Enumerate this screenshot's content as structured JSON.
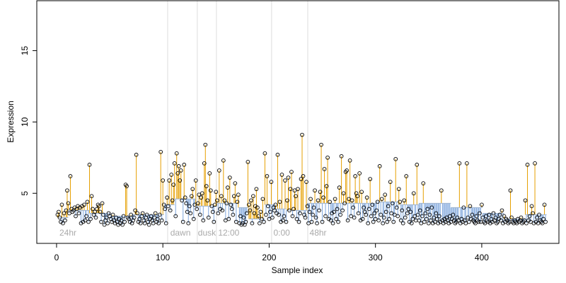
{
  "chart_data": {
    "type": "scatter",
    "xlabel": "Sample index",
    "ylabel": "Expression",
    "xlim": [
      -18.6,
      472.6
    ],
    "ylim": [
      1.49,
      18.5
    ],
    "xticks": [
      0,
      100,
      200,
      300,
      400
    ],
    "yticks": [
      5,
      10,
      15
    ],
    "above_color": "#e69f00",
    "below_color": "#7ea6dc",
    "step_color": "#9fb4d0",
    "vline_color": "#dddddd",
    "vlines": [
      104.5,
      132.4,
      150.4,
      202.3,
      236.3
    ],
    "annotations": [
      {
        "text": "24hr",
        "x": 2.7,
        "y": 2.2
      },
      {
        "text": "dawn",
        "x": 107,
        "y": 2.2
      },
      {
        "text": "dusk",
        "x": 133,
        "y": 2.2
      },
      {
        "text": "12:00",
        "x": 152,
        "y": 2.2
      },
      {
        "text": "0:00",
        "x": 204,
        "y": 2.2
      },
      {
        "text": "48hr",
        "x": 238,
        "y": 2.2
      }
    ],
    "steps": {
      "edges": [
        1,
        11,
        31,
        51,
        71,
        101,
        111,
        131,
        151,
        171,
        181,
        196,
        206,
        216,
        236,
        261,
        301,
        321,
        341,
        371,
        401,
        421,
        441,
        461
      ],
      "values": [
        3.3,
        3.8,
        3.6,
        3.4,
        3.5,
        4.2,
        4.6,
        4.1,
        4.3,
        4.0,
        3.2,
        4.2,
        3.9,
        3.8,
        4.3,
        4.3,
        4.4,
        4.2,
        4.3,
        4.0,
        3.6,
        3.2,
        3.5
      ]
    },
    "x": [
      1,
      2,
      3,
      4,
      5,
      6,
      7,
      8,
      9,
      10,
      11,
      12,
      13,
      14,
      15,
      16,
      17,
      18,
      19,
      20,
      21,
      22,
      23,
      24,
      25,
      26,
      27,
      28,
      29,
      30,
      31,
      32,
      33,
      34,
      35,
      36,
      37,
      38,
      39,
      40,
      41,
      42,
      43,
      44,
      45,
      46,
      47,
      48,
      49,
      50,
      51,
      52,
      53,
      54,
      55,
      56,
      57,
      58,
      59,
      60,
      61,
      62,
      63,
      64,
      65,
      66,
      67,
      68,
      69,
      70,
      71,
      72,
      73,
      74,
      75,
      76,
      77,
      78,
      79,
      80,
      81,
      82,
      83,
      84,
      85,
      86,
      87,
      88,
      89,
      90,
      91,
      92,
      93,
      94,
      95,
      96,
      97,
      98,
      99,
      100,
      101,
      102,
      103,
      104,
      105,
      106,
      107,
      108,
      109,
      110,
      111,
      112,
      113,
      114,
      115,
      116,
      117,
      118,
      119,
      120,
      121,
      122,
      123,
      124,
      125,
      126,
      127,
      128,
      129,
      130,
      131,
      132,
      133,
      134,
      135,
      136,
      137,
      138,
      139,
      140,
      141,
      142,
      143,
      144,
      145,
      146,
      147,
      148,
      149,
      150,
      151,
      152,
      153,
      154,
      155,
      156,
      157,
      158,
      159,
      160,
      161,
      162,
      163,
      164,
      165,
      166,
      167,
      168,
      169,
      170,
      171,
      172,
      173,
      174,
      175,
      176,
      177,
      178,
      179,
      180,
      181,
      182,
      183,
      184,
      185,
      186,
      187,
      188,
      189,
      190,
      191,
      192,
      193,
      194,
      195,
      196,
      197,
      198,
      199,
      200,
      201,
      202,
      203,
      204,
      205,
      206,
      207,
      208,
      209,
      210,
      211,
      212,
      213,
      214,
      215,
      216,
      217,
      218,
      219,
      220,
      221,
      222,
      223,
      224,
      225,
      226,
      227,
      228,
      229,
      230,
      231,
      232,
      233,
      234,
      235,
      236,
      237,
      238,
      239,
      240,
      241,
      242,
      243,
      244,
      245,
      246,
      247,
      248,
      249,
      250,
      251,
      252,
      253,
      254,
      255,
      256,
      257,
      258,
      259,
      260,
      261,
      262,
      263,
      264,
      265,
      266,
      267,
      268,
      269,
      270,
      271,
      272,
      273,
      274,
      275,
      276,
      277,
      278,
      279,
      280,
      281,
      282,
      283,
      284,
      285,
      286,
      287,
      288,
      289,
      290,
      291,
      292,
      293,
      294,
      295,
      296,
      297,
      298,
      299,
      300,
      301,
      302,
      303,
      304,
      305,
      306,
      307,
      308,
      309,
      310,
      311,
      312,
      313,
      314,
      315,
      316,
      317,
      318,
      319,
      320,
      321,
      322,
      323,
      324,
      325,
      326,
      327,
      328,
      329,
      330,
      331,
      332,
      333,
      334,
      335,
      336,
      337,
      338,
      339,
      340,
      341,
      342,
      343,
      344,
      345,
      346,
      347,
      348,
      349,
      350,
      351,
      352,
      353,
      354,
      355,
      356,
      357,
      358,
      359,
      360,
      361,
      362,
      363,
      364,
      365,
      366,
      367,
      368,
      369,
      370,
      371,
      372,
      373,
      374,
      375,
      376,
      377,
      378,
      379,
      380,
      381,
      382,
      383,
      384,
      385,
      386,
      387,
      388,
      389,
      390,
      391,
      392,
      393,
      394,
      395,
      396,
      397,
      398,
      399,
      400,
      401,
      402,
      403,
      404,
      405,
      406,
      407,
      408,
      409,
      410,
      411,
      412,
      413,
      414,
      415,
      416,
      417,
      418,
      419,
      420,
      421,
      422,
      423,
      424,
      425,
      426,
      427,
      428,
      429,
      430,
      431,
      432,
      433,
      434,
      435,
      436,
      437,
      438,
      439,
      440,
      441,
      442,
      443,
      444,
      445,
      446,
      447,
      448,
      449,
      450,
      451,
      452,
      453,
      454,
      455,
      456,
      457,
      458,
      459,
      460
    ],
    "series": [
      {
        "color": "#000000",
        "values": [
          3.5,
          3.7,
          3.3,
          3.0,
          4.2,
          2.9,
          3.6,
          3.1,
          3.8,
          5.2,
          4.3,
          3.6,
          6.2,
          3.9,
          3.7,
          3.8,
          4.0,
          3.4,
          3.9,
          4.1,
          3.6,
          4.0,
          2.9,
          4.1,
          3.0,
          4.2,
          3.1,
          3.4,
          4.4,
          3.0,
          7.0,
          3.2,
          4.8,
          3.9,
          3.5,
          3.7,
          3.3,
          3.9,
          4.2,
          4.1,
          3.7,
          3.0,
          4.3,
          3.5,
          2.8,
          3.1,
          3.3,
          2.9,
          3.6,
          3.4,
          3.2,
          3.0,
          3.5,
          3.1,
          2.9,
          3.3,
          3.0,
          2.8,
          3.2,
          2.9,
          3.1,
          2.8,
          3.4,
          3.0,
          5.6,
          5.5,
          3.3,
          3.2,
          3.0,
          3.5,
          2.9,
          3.1,
          3.3,
          3.8,
          7.7,
          3.6,
          3.0,
          3.2,
          2.9,
          3.4,
          3.6,
          3.1,
          2.9,
          3.3,
          3.5,
          3.0,
          2.8,
          3.2,
          3.4,
          3.1,
          2.9,
          3.3,
          3.6,
          3.0,
          3.2,
          2.9,
          3.5,
          7.9,
          3.1,
          5.9,
          4.2,
          3.9,
          2.9,
          4.7,
          4.1,
          5.9,
          3.8,
          6.3,
          4.5,
          5.6,
          7.1,
          3.4,
          7.8,
          6.4,
          6.9,
          5.9,
          6.6,
          4.5,
          3.0,
          7.0,
          4.7,
          4.3,
          3.7,
          2.9,
          4.1,
          3.6,
          4.8,
          5.3,
          3.2,
          4.2,
          5.9,
          3.9,
          4.3,
          4.9,
          3.5,
          4.7,
          5.0,
          3.1,
          7.1,
          8.4,
          5.5,
          4.5,
          3.3,
          6.4,
          5.2,
          4.1,
          3.7,
          3.0,
          4.2,
          5.1,
          4.5,
          3.6,
          6.6,
          3.9,
          4.8,
          3.8,
          7.3,
          4.5,
          3.1,
          4.3,
          5.4,
          3.2,
          6.1,
          4.2,
          3.9,
          3.5,
          4.8,
          5.7,
          3.0,
          4.4,
          4.9,
          2.9,
          3.4,
          2.8,
          2.9,
          3.3,
          2.8,
          3.0,
          3.6,
          7.2,
          4.2,
          3.8,
          4.5,
          2.9,
          4.8,
          3.6,
          4.1,
          5.3,
          4.0,
          3.4,
          2.9,
          3.7,
          3.2,
          4.6,
          3.0,
          7.8,
          3.5,
          6.2,
          4.1,
          3.2,
          3.7,
          5.8,
          3.3,
          4.0,
          3.8,
          4.2,
          3.6,
          7.7,
          3.5,
          4.4,
          3.0,
          6.3,
          3.1,
          3.4,
          5.9,
          3.0,
          4.5,
          6.1,
          3.8,
          5.3,
          6.5,
          3.4,
          3.9,
          5.2,
          4.8,
          3.2,
          5.3,
          3.0,
          3.6,
          6.0,
          9.1,
          6.2,
          3.5,
          3.3,
          5.8,
          4.1,
          2.9,
          3.7,
          4.6,
          3.0,
          3.5,
          4.0,
          5.2,
          3.3,
          2.9,
          4.5,
          3.8,
          5.1,
          8.4,
          3.0,
          4.7,
          6.7,
          3.4,
          5.5,
          7.5,
          3.2,
          4.4,
          3.1,
          3.6,
          2.9,
          3.7,
          4.6,
          3.2,
          3.9,
          3.0,
          5.4,
          3.5,
          7.6,
          3.8,
          5.0,
          4.3,
          6.5,
          6.6,
          3.1,
          4.6,
          7.3,
          3.4,
          4.5,
          4.0,
          3.3,
          6.2,
          5.0,
          4.8,
          3.6,
          6.4,
          3.1,
          5.1,
          3.2,
          4.0,
          3.7,
          3.5,
          4.7,
          2.9,
          3.9,
          6.0,
          3.4,
          4.2,
          3.0,
          3.6,
          3.2,
          3.8,
          4.4,
          3.1,
          6.9,
          3.5,
          4.6,
          2.9,
          3.3,
          4.9,
          3.7,
          3.0,
          4.1,
          3.2,
          5.8,
          3.6,
          4.3,
          3.0,
          3.5,
          7.4,
          4.0,
          3.4,
          5.3,
          4.4,
          3.1,
          3.8,
          2.9,
          4.5,
          3.3,
          6.2,
          3.6,
          3.9,
          3.0,
          3.7,
          2.9,
          3.2,
          5.0,
          3.4,
          3.1,
          7.0,
          3.5,
          3.1,
          3.8,
          2.9,
          3.4,
          5.7,
          3.0,
          3.6,
          3.2,
          3.9,
          2.9,
          3.5,
          3.1,
          4.0,
          2.9,
          3.3,
          3.0,
          3.6,
          3.2,
          2.9,
          3.4,
          3.0,
          5.2,
          3.1,
          2.9,
          3.2,
          3.0,
          3.3,
          3.1,
          2.9,
          3.4,
          3.0,
          3.2,
          3.5,
          3.1,
          2.9,
          3.0,
          3.3,
          3.1,
          7.1,
          2.9,
          3.2,
          3.0,
          4.0,
          3.1,
          2.9,
          7.1,
          3.3,
          3.0,
          4.1,
          3.2,
          3.5,
          3.1,
          3.0,
          2.9,
          3.4,
          3.1,
          3.0,
          3.6,
          3.0,
          4.2,
          3.3,
          3.0,
          2.9,
          3.4,
          3.1,
          3.0,
          3.5,
          2.9,
          3.2,
          3.0,
          3.6,
          3.1,
          3.3,
          2.9,
          3.0,
          3.2,
          3.5,
          3.1,
          3.8,
          2.9,
          3.4,
          3.0,
          3.2,
          3.1,
          2.9,
          3.0,
          5.2,
          3.3,
          3.0,
          2.9,
          3.1,
          3.0,
          2.9,
          3.2,
          3.0,
          3.1,
          3.3,
          2.9,
          3.0,
          3.1,
          4.5,
          2.9,
          7.0,
          3.1,
          3.4,
          3.0,
          4.1,
          3.6,
          2.9,
          7.1,
          3.0,
          3.3,
          2.9,
          3.5,
          3.1,
          3.0,
          2.9,
          3.2,
          4.2,
          3.0
        ]
      }
    ]
  }
}
